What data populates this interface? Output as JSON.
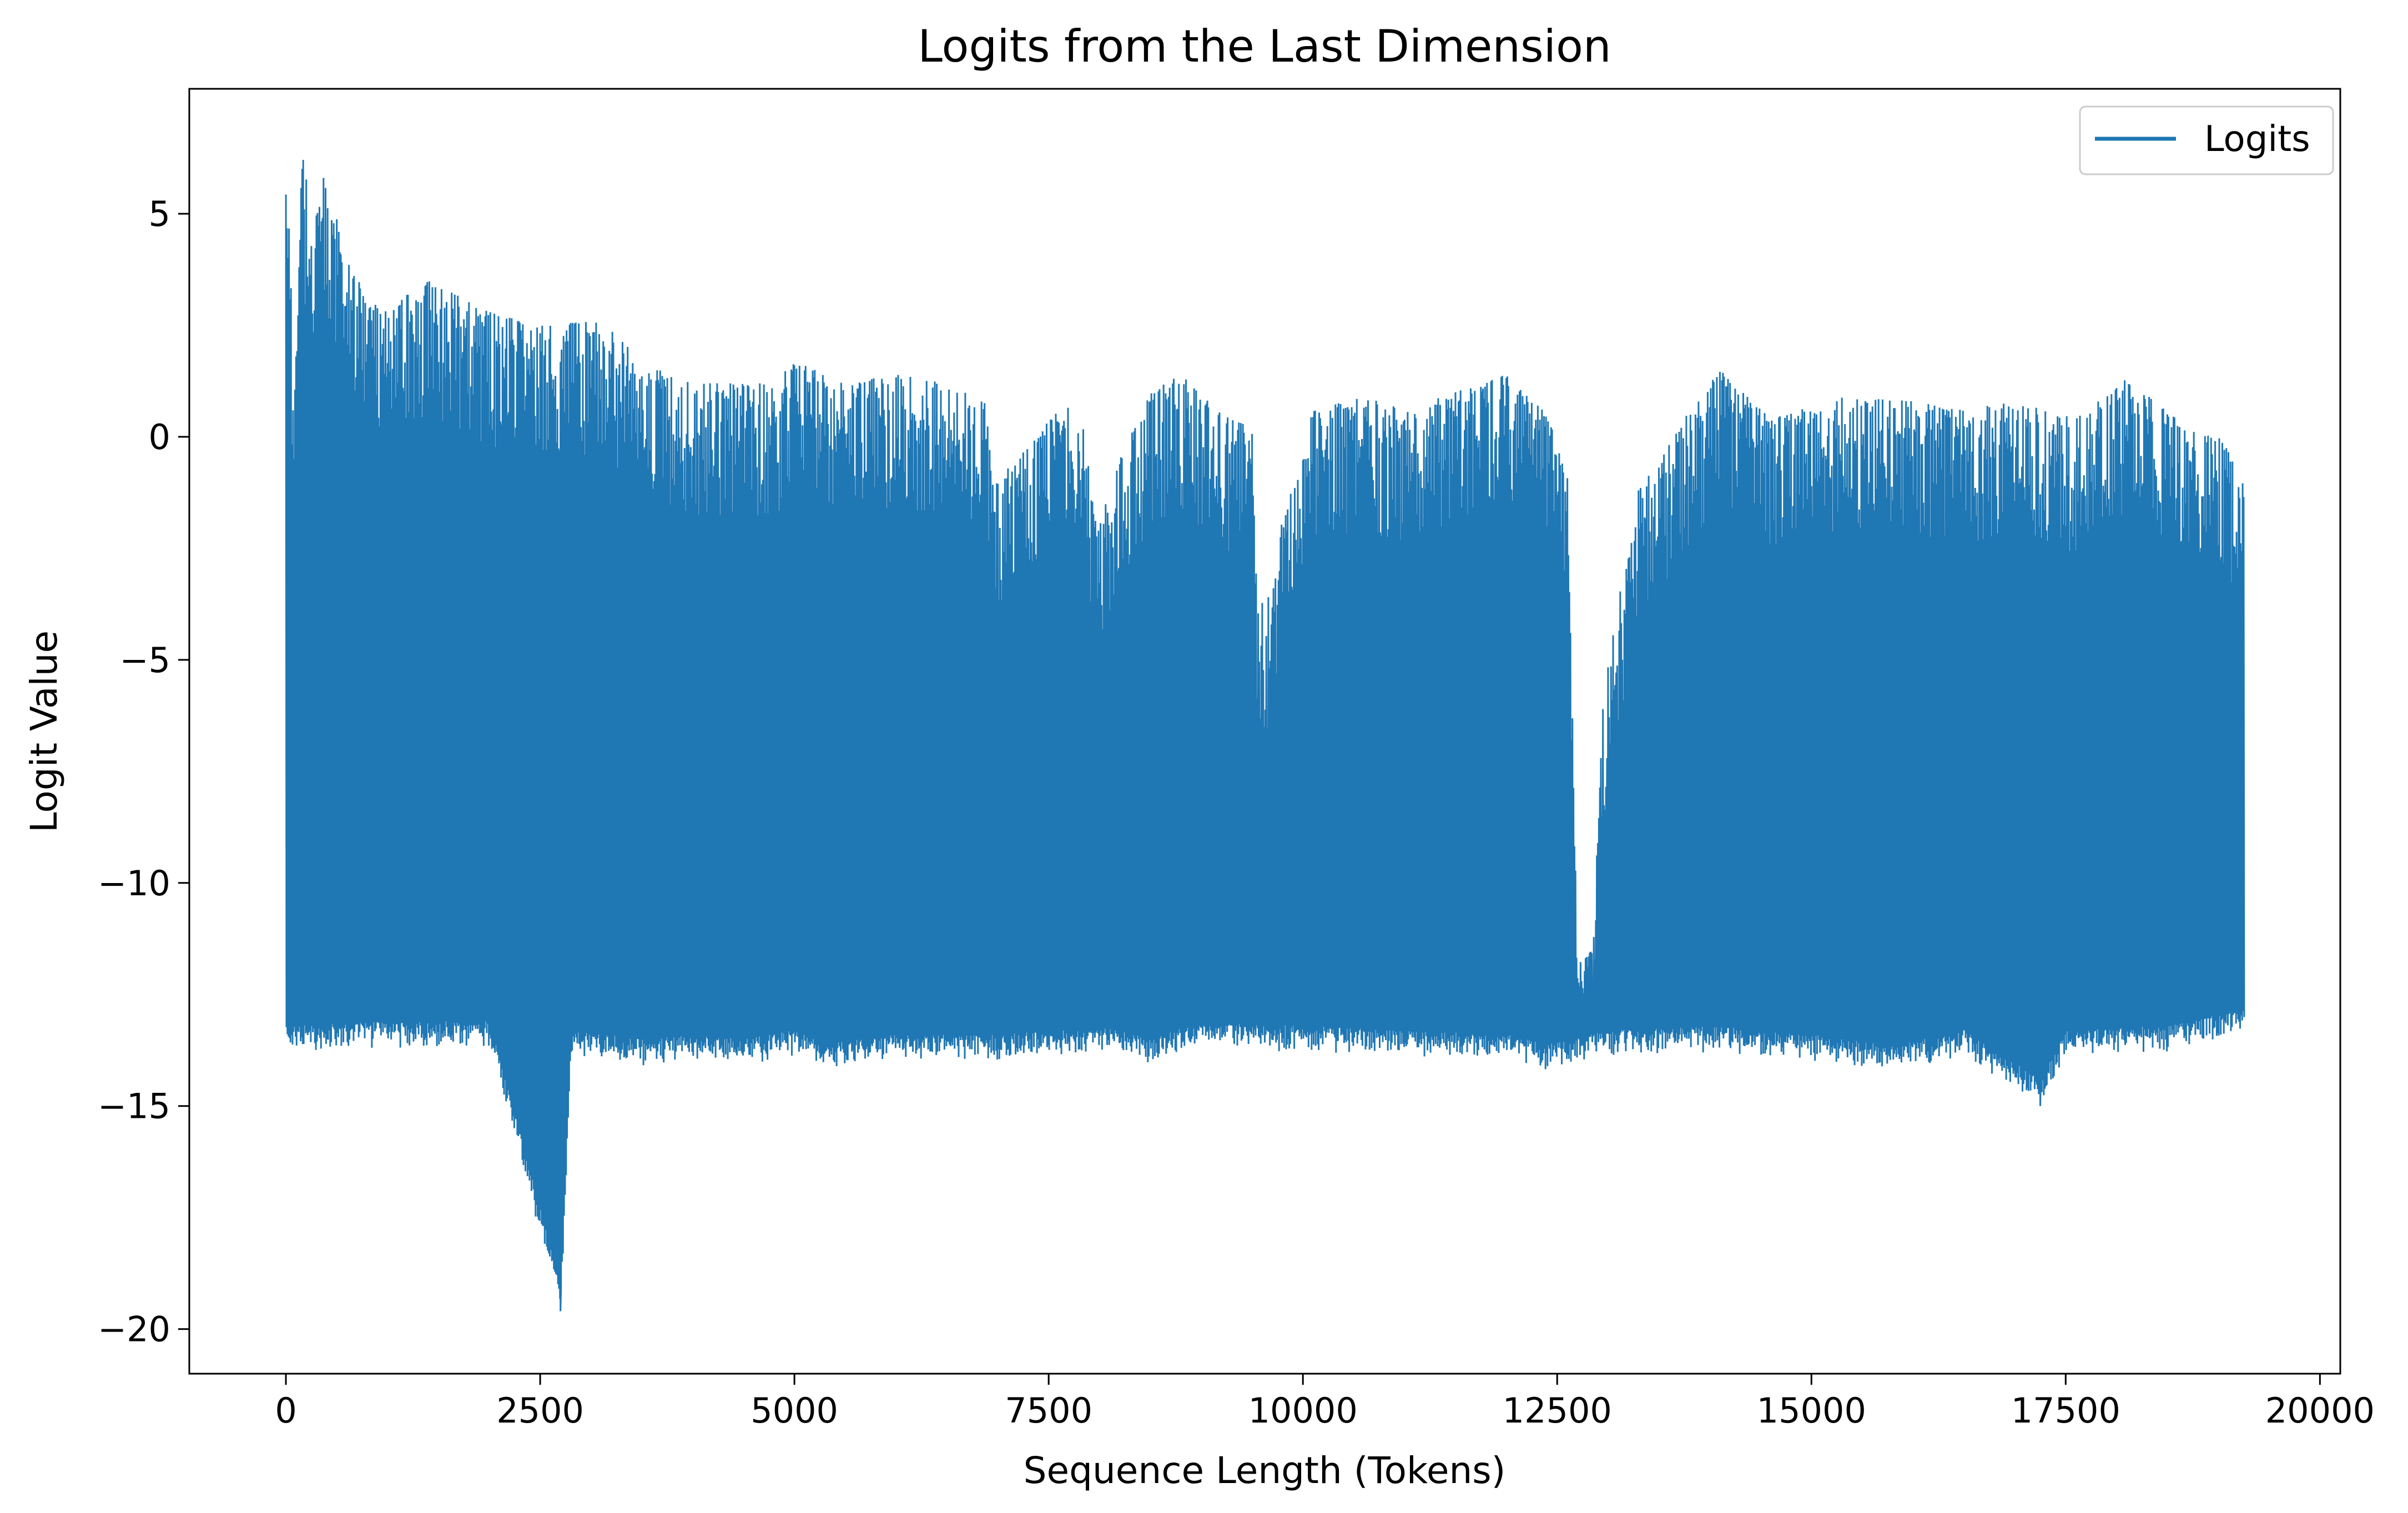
{
  "chart_data": {
    "type": "line",
    "title": "Logits from the Last Dimension",
    "xlabel": "Sequence Length (Tokens)",
    "ylabel": "Logit Value",
    "xlim": [
      -950,
      20200
    ],
    "ylim": [
      -21,
      7.8
    ],
    "x_ticks": [
      0,
      2500,
      5000,
      7500,
      10000,
      12500,
      15000,
      17500,
      20000
    ],
    "x_tick_labels": [
      "0",
      "2500",
      "5000",
      "7500",
      "10000",
      "12500",
      "15000",
      "17500",
      "20000"
    ],
    "y_ticks": [
      5,
      0,
      -5,
      -10,
      -15,
      -20
    ],
    "y_tick_labels": [
      "5",
      "0",
      "−5",
      "−10",
      "−15",
      "−20"
    ],
    "grid": false,
    "legend": {
      "position": "top-right",
      "entries": [
        "Logits"
      ]
    },
    "series": [
      {
        "name": "Logits",
        "color": "#1f77b4",
        "n_points": 19250,
        "upper_envelope": [
          [
            0,
            6.4
          ],
          [
            40,
            4.4
          ],
          [
            80,
            0.5
          ],
          [
            150,
            6.6
          ],
          [
            250,
            5.0
          ],
          [
            350,
            6.0
          ],
          [
            600,
            4.2
          ],
          [
            800,
            3.0
          ],
          [
            1000,
            2.9
          ],
          [
            1400,
            3.5
          ],
          [
            2000,
            2.8
          ],
          [
            2500,
            2.5
          ],
          [
            3100,
            2.6
          ],
          [
            3500,
            1.7
          ],
          [
            4000,
            1.2
          ],
          [
            4800,
            1.2
          ],
          [
            5000,
            1.7
          ],
          [
            5500,
            1.2
          ],
          [
            6000,
            1.4
          ],
          [
            6500,
            1.2
          ],
          [
            6900,
            0.8
          ],
          [
            6950,
            -1.0
          ],
          [
            7200,
            -0.5
          ],
          [
            7500,
            0.4
          ],
          [
            7800,
            0.9
          ],
          [
            7980,
            -2.2
          ],
          [
            8100,
            -1.0
          ],
          [
            8500,
            1.0
          ],
          [
            8800,
            1.4
          ],
          [
            9200,
            0.5
          ],
          [
            9500,
            0.2
          ],
          [
            9560,
            -3.8
          ],
          [
            9700,
            -3.5
          ],
          [
            9800,
            -1.8
          ],
          [
            10100,
            0.6
          ],
          [
            10600,
            0.9
          ],
          [
            11000,
            0.6
          ],
          [
            11500,
            1.0
          ],
          [
            12000,
            1.4
          ],
          [
            12400,
            0.5
          ],
          [
            12600,
            -0.8
          ],
          [
            12700,
            -11.8
          ],
          [
            12850,
            -11.5
          ],
          [
            12950,
            -6.1
          ],
          [
            13050,
            -4.2
          ],
          [
            13300,
            -1.2
          ],
          [
            13800,
            0.6
          ],
          [
            14100,
            1.5
          ],
          [
            14600,
            0.4
          ],
          [
            15300,
            0.9
          ],
          [
            16000,
            0.8
          ],
          [
            16500,
            0.6
          ],
          [
            17000,
            0.8
          ],
          [
            17600,
            0.4
          ],
          [
            18100,
            1.3
          ],
          [
            18700,
            0.2
          ],
          [
            19000,
            0.1
          ],
          [
            19250,
            -1.0
          ]
        ],
        "lower_envelope": [
          [
            0,
            -13.8
          ],
          [
            1000,
            -13.7
          ],
          [
            2000,
            -13.7
          ],
          [
            2700,
            -19.6
          ],
          [
            2800,
            -13.9
          ],
          [
            3500,
            -14.1
          ],
          [
            4000,
            -14.0
          ],
          [
            4500,
            -14.1
          ],
          [
            5000,
            -13.9
          ],
          [
            5300,
            -14.2
          ],
          [
            6000,
            -14.0
          ],
          [
            7000,
            -14.0
          ],
          [
            8000,
            -13.8
          ],
          [
            8500,
            -14.1
          ],
          [
            9000,
            -13.7
          ],
          [
            10000,
            -13.8
          ],
          [
            11000,
            -13.9
          ],
          [
            12000,
            -14.0
          ],
          [
            12400,
            -14.2
          ],
          [
            13000,
            -13.9
          ],
          [
            14000,
            -13.8
          ],
          [
            15000,
            -14.0
          ],
          [
            15800,
            -14.2
          ],
          [
            16500,
            -13.9
          ],
          [
            17250,
            -15.0
          ],
          [
            17500,
            -13.9
          ],
          [
            18500,
            -13.8
          ],
          [
            19250,
            -13.4
          ]
        ]
      }
    ]
  }
}
